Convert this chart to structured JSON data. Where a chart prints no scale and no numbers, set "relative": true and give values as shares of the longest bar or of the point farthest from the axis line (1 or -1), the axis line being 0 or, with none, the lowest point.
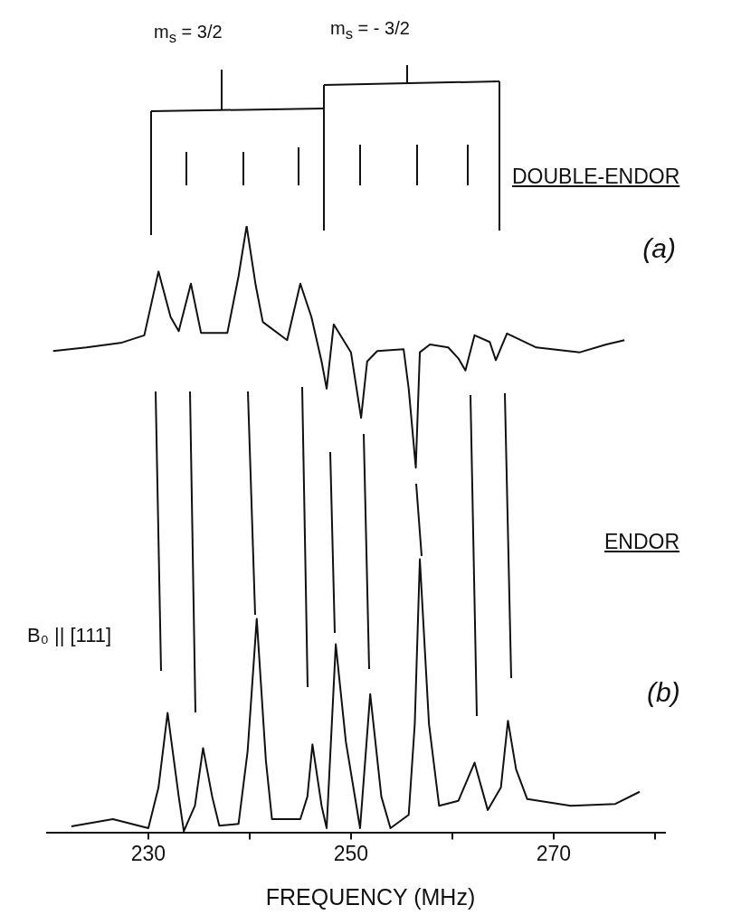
{
  "chart_data": {
    "type": "line",
    "relative": true,
    "xlabel": "FREQUENCY (MHz)",
    "xlim": [
      220,
      281
    ],
    "xticks": [
      230,
      {
        "value": 240,
        "label": null
      },
      250,
      {
        "value": 260,
        "label": null
      },
      270,
      {
        "value": 280,
        "label": null
      }
    ],
    "legend": false,
    "annotations": [
      "m$_{s}$ = 3/2",
      "m$_{s}$ = - 3/2",
      "DOUBLE-ENDOR",
      "ENDOR",
      "B₀ || [111]"
    ],
    "series": [
      {
        "name": "(a)",
        "color": "#111111",
        "x": [
          220.6,
          223.9,
          227.4,
          229.6,
          231.0,
          232.2,
          233.0,
          234.2,
          235.2,
          237.8,
          238.9,
          239.7,
          240.6,
          241.3,
          243.7,
          245.0,
          246.1,
          247.1,
          247.6,
          248.3,
          250.0,
          251.0,
          251.6,
          252.6,
          255.2,
          255.7,
          256.4,
          256.8,
          257.8,
          259.6,
          260.6,
          261.3,
          262.2,
          263.7,
          264.3,
          265.4,
          268.3,
          272.6,
          275.2,
          277.0
        ],
        "values": [
          0.794,
          0.8,
          0.808,
          0.82,
          0.925,
          0.85,
          0.827,
          0.905,
          0.824,
          0.824,
          0.917,
          1,
          0.902,
          0.842,
          0.812,
          0.905,
          0.85,
          0.777,
          0.732,
          0.838,
          0.792,
          0.684,
          0.777,
          0.794,
          0.797,
          0.732,
          0.602,
          0.792,
          0.805,
          0.8,
          0.782,
          0.762,
          0.82,
          0.809,
          0.779,
          0.823,
          0.8,
          0.792,
          0.805,
          0.812
        ]
      },
      {
        "name": "(b)",
        "color": "#111111",
        "x": [
          222.4,
          226.5,
          230.0,
          231.0,
          231.9,
          233.0,
          233.5,
          234.6,
          235.4,
          236.3,
          237.0,
          238.9,
          239.8,
          240.7,
          241.6,
          242.2,
          245.0,
          245.7,
          246.2,
          247.1,
          247.6,
          248.5,
          249.5,
          250.9,
          251.9,
          253.0,
          253.9,
          255.7,
          256.3,
          256.8,
          257.7,
          258.7,
          260.6,
          262.2,
          263.5,
          264.8,
          265.5,
          266.3,
          267.4,
          271.7,
          276.1,
          278.5
        ],
        "values": [
          0.011,
          0.023,
          0.008,
          0.075,
          0.198,
          0.06,
          0.003,
          0.045,
          0.14,
          0.06,
          0.012,
          0.015,
          0.135,
          0.353,
          0.12,
          0.023,
          0.023,
          0.06,
          0.146,
          0.045,
          0.008,
          0.311,
          0.15,
          0.008,
          0.229,
          0.06,
          0.008,
          0.03,
          0.18,
          0.451,
          0.18,
          0.045,
          0.053,
          0.116,
          0.038,
          0.075,
          0.185,
          0.105,
          0.056,
          0.045,
          0.048,
          0.068
        ]
      }
    ]
  }
}
